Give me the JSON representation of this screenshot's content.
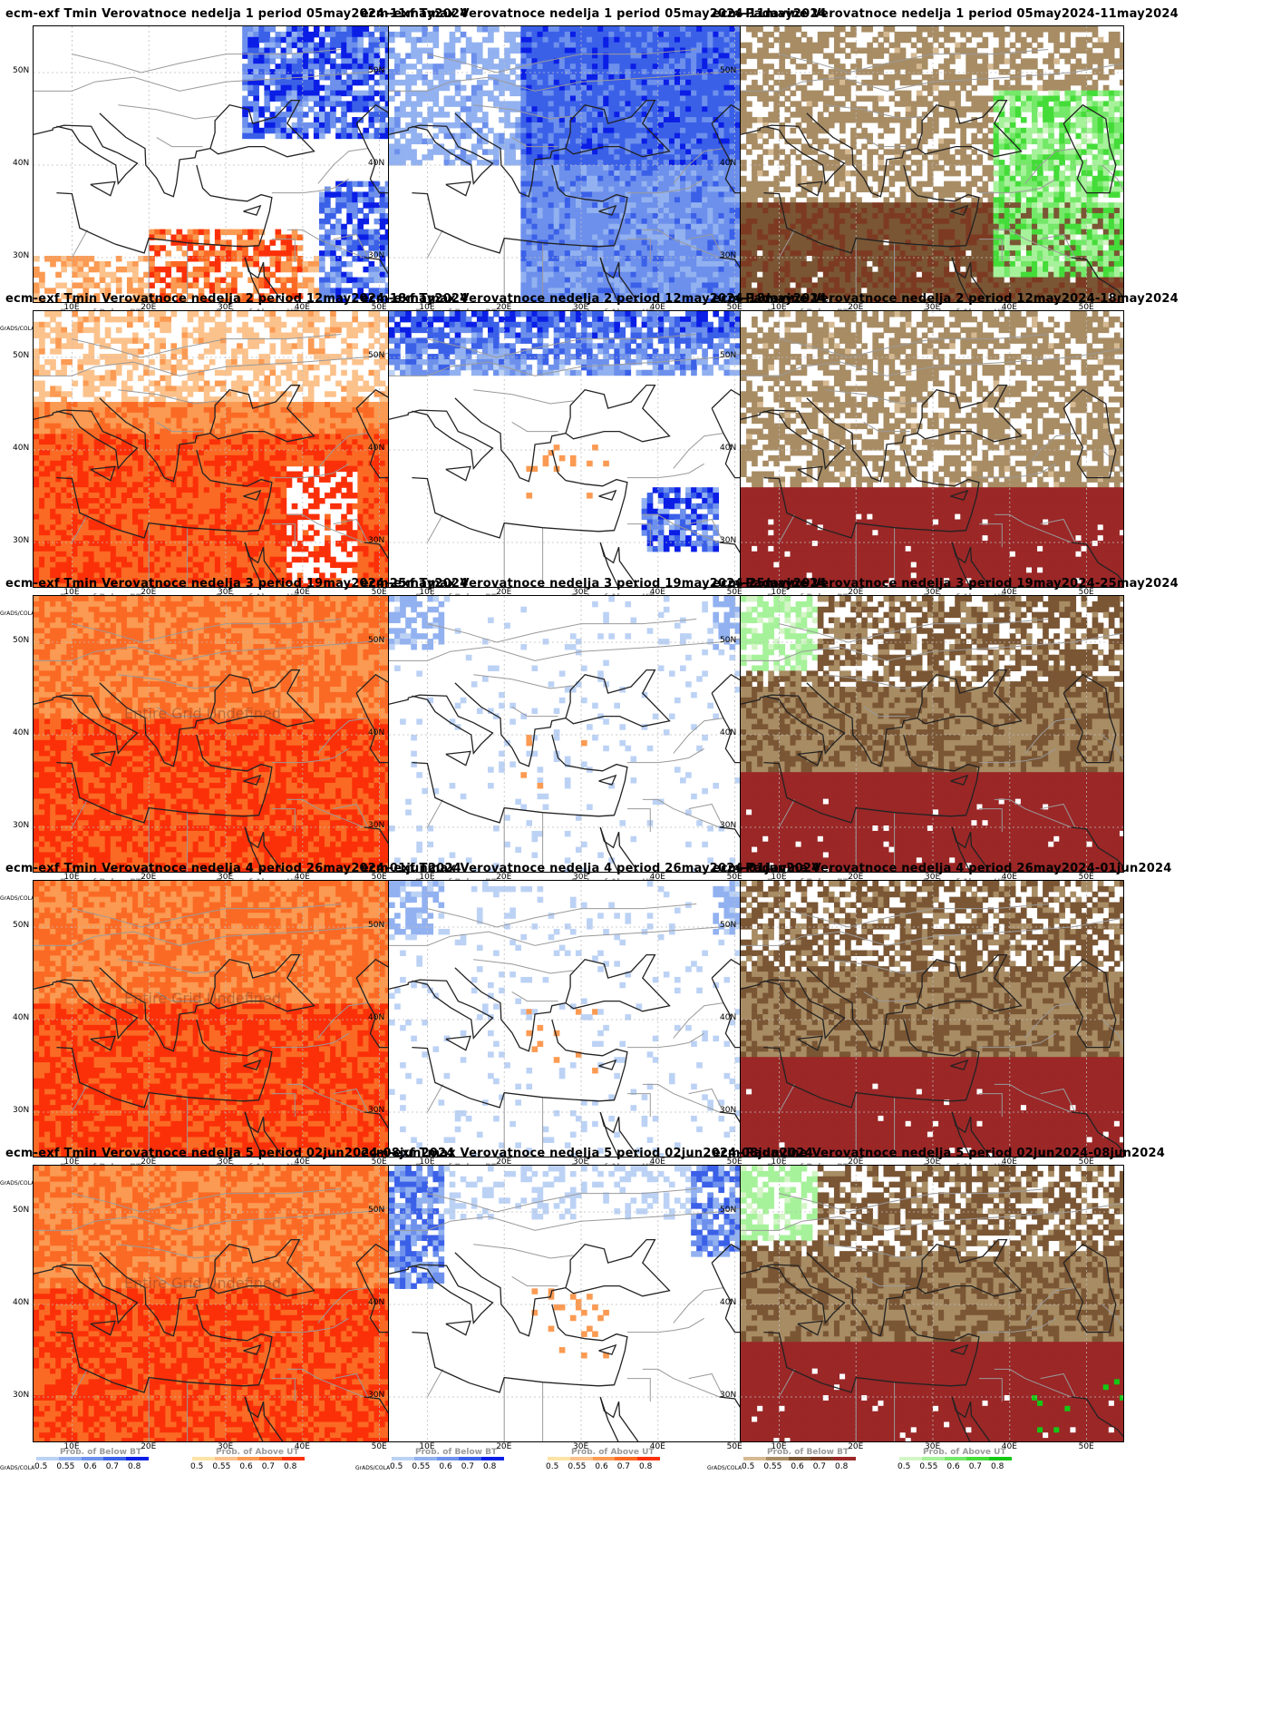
{
  "colors": {
    "below": [
      "#bcd2f5",
      "#92b1f0",
      "#6d90ec",
      "#3b60e8",
      "#0a1ee6"
    ],
    "above_temp": [
      "#fde3a6",
      "#fcc28c",
      "#fb9a52",
      "#fb6a24",
      "#fb3008"
    ],
    "below_precip": [
      "#d5b992",
      "#a88c64",
      "#7a5634",
      "#7d3a22",
      "#9b2727"
    ],
    "above_precip": [
      "#d3f5c6",
      "#a6f29a",
      "#74e868",
      "#44dc38",
      "#14c814"
    ],
    "coast": "#222222",
    "border": "#9a9a9a",
    "gridline": "#bdbdbd"
  },
  "axes": {
    "y_ticks": [
      "50N",
      "40N",
      "30N"
    ],
    "x_ticks": [
      "10E",
      "20E",
      "30E",
      "40E",
      "50E"
    ]
  },
  "legend": {
    "grads_label": "GrADS/COLA",
    "below_temp_title": "Prob. of Below BT",
    "above_temp_title": "Prob. of Above UT",
    "ticks": [
      "0.5",
      "0.55",
      "0.6",
      "0.7",
      "0.8"
    ]
  },
  "undefined_note": "Entire Grid Undefined",
  "panels": [
    {
      "title": "ecm-exf Tmin Verovatnoce nedelja 1 period 05may2024-11may2024",
      "kind": "tmin",
      "week": 1
    },
    {
      "title": "ecm-exf Tmax Verovatnoce nedelja 1 period 05may2024-11may2024",
      "kind": "tmax",
      "week": 1
    },
    {
      "title": "ecm-Padavine Verovatnoce nedelja 1 period 05may2024-11may2024",
      "kind": "prec",
      "week": 1
    },
    {
      "title": "ecm-exf Tmin Verovatnoce nedelja 2 period 12may2024-18may2024",
      "kind": "tmin",
      "week": 2
    },
    {
      "title": "ecm-exf Tmax Verovatnoce nedelja 2 period 12may2024-18may2024",
      "kind": "tmax",
      "week": 2
    },
    {
      "title": "ecm-Padavine Verovatnoce nedelja 2 period 12may2024-18may2024",
      "kind": "prec",
      "week": 2
    },
    {
      "title": "ecm-exf Tmin Verovatnoce nedelja 3 period 19may2024-25may2024",
      "kind": "tmin",
      "week": 3,
      "undefined": true
    },
    {
      "title": "ecm-exf Tmax Verovatnoce nedelja 3 period 19may2024-25may2024",
      "kind": "tmax",
      "week": 3
    },
    {
      "title": "ecm-Padavine Verovatnoce nedelja 3 period 19may2024-25may2024",
      "kind": "prec",
      "week": 3
    },
    {
      "title": "ecm-exf Tmin Verovatnoce nedelja 4 period 26may2024-01jun2024",
      "kind": "tmin",
      "week": 4,
      "undefined": true
    },
    {
      "title": "ecm-exf Tmax Verovatnoce nedelja 4 period 26may2024-01jun2024",
      "kind": "tmax",
      "week": 4
    },
    {
      "title": "ecm-Padavine Verovatnoce nedelja 4 period 26may2024-01jun2024",
      "kind": "prec",
      "week": 4
    },
    {
      "title": "ecm-exf Tmin Verovatnoce nedelja 5 period 02jun2024-08jun2024",
      "kind": "tmin",
      "week": 5,
      "undefined": true
    },
    {
      "title": "ecm-exf Tmax Verovatnoce nedelja 5 period 02jun2024-08jun2024",
      "kind": "tmax",
      "week": 5
    },
    {
      "title": "ecm-Padavine Verovatnoce nedelja 5 period 02jun2024-08jun2024",
      "kind": "prec",
      "week": 5
    }
  ]
}
